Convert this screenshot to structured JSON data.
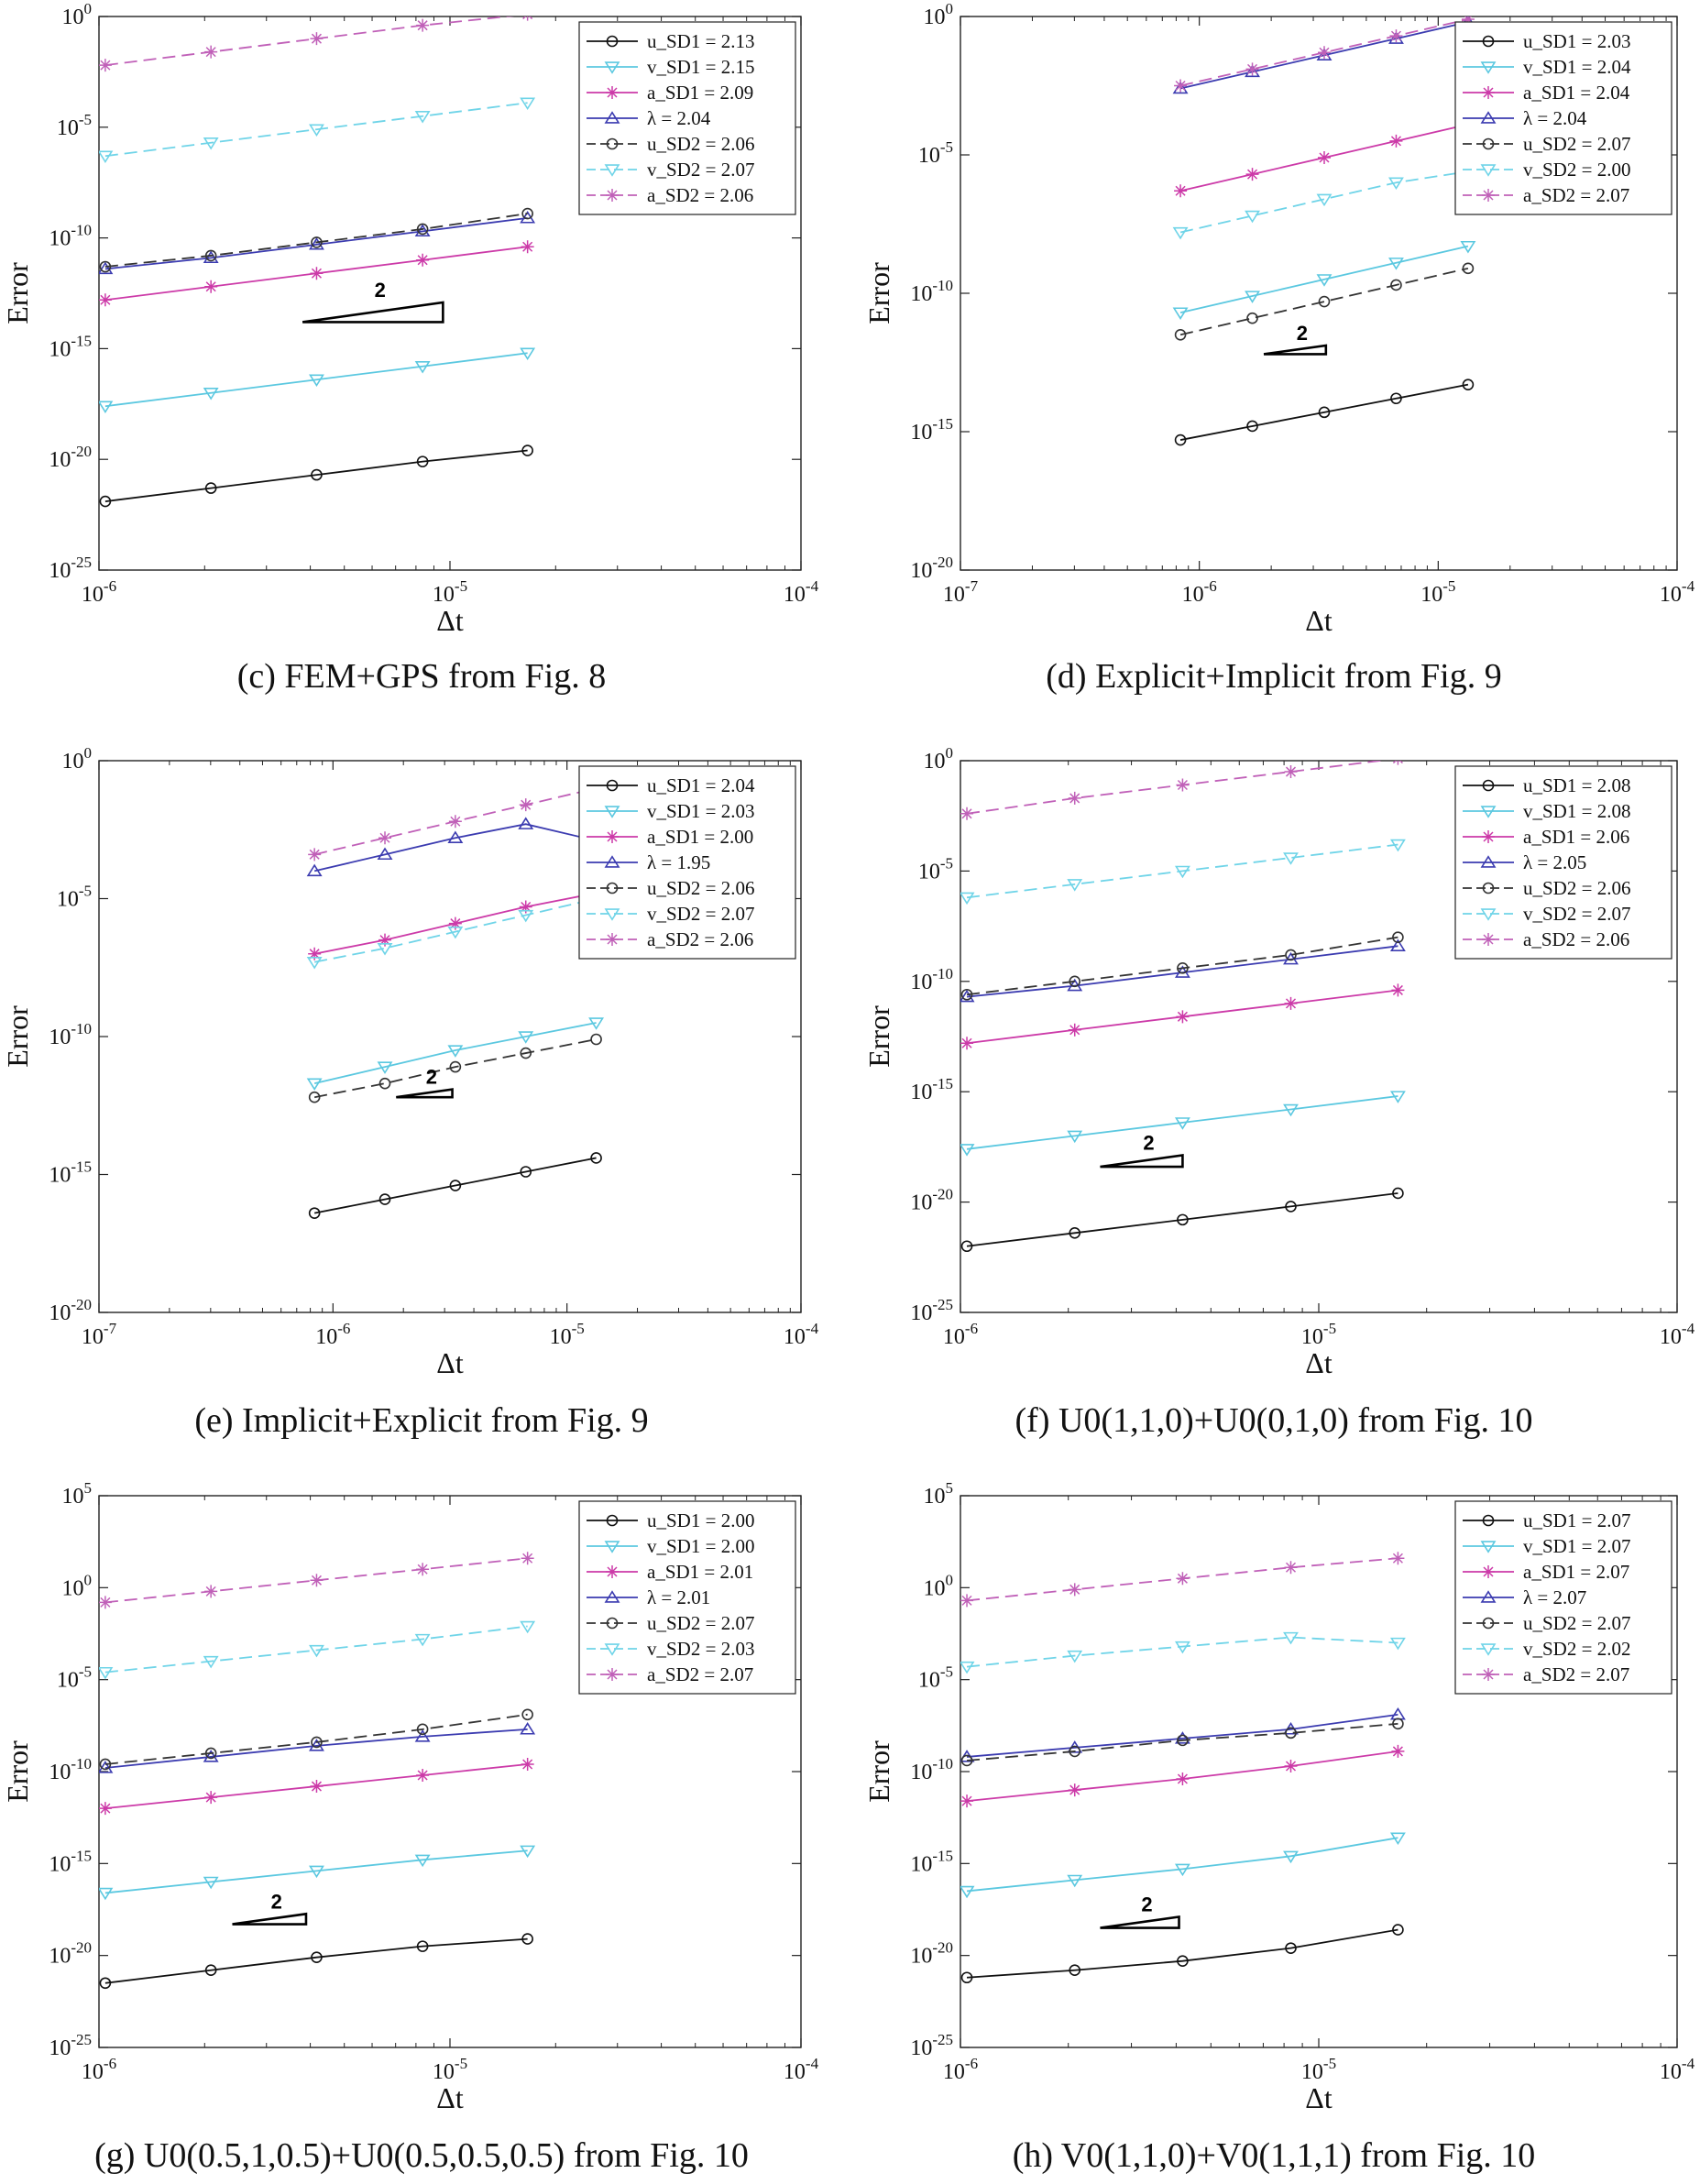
{
  "colors": {
    "u": "#111111",
    "v": "#5bc8e0",
    "a": "#cc3aa8",
    "lambda": "#3b3bb0",
    "u2": "#333333",
    "v2": "#6fd4e8",
    "a2": "#c060b8"
  },
  "chart_data": [
    {
      "type": "line",
      "caption": "(c) FEM+GPS from Fig. 8",
      "xlabel": "Δt",
      "ylabel": "Error",
      "xscale": "log",
      "yscale": "log",
      "xlim_exp": [
        -6,
        -4
      ],
      "ylim_exp": [
        -25,
        0
      ],
      "xtick_exps": [
        -6,
        -5,
        -4
      ],
      "ytick_exps": [
        -25,
        -20,
        -15,
        -10,
        -5,
        0
      ],
      "x_exps": [
        -5.982,
        -5.681,
        -5.38,
        -5.078,
        -4.779
      ],
      "triangle": {
        "label": "2",
        "x0": -5.42,
        "x1": -5.02,
        "y0": -13.8
      },
      "series": [
        {
          "name": "u_SD1 = 2.13",
          "key": "u",
          "style": "solid",
          "marker": "circle",
          "y_exps": [
            -21.9,
            -21.3,
            -20.7,
            -20.1,
            -19.6
          ]
        },
        {
          "name": "v_SD1 = 2.15",
          "key": "v",
          "style": "solid",
          "marker": "tridown",
          "y_exps": [
            -17.6,
            -17.0,
            -16.4,
            -15.8,
            -15.2
          ]
        },
        {
          "name": "a_SD1 = 2.09",
          "key": "a",
          "style": "solid",
          "marker": "star",
          "y_exps": [
            -12.8,
            -12.2,
            -11.6,
            -11.0,
            -10.4
          ]
        },
        {
          "name": "λ = 2.04",
          "key": "lambda",
          "style": "solid",
          "marker": "triup",
          "y_exps": [
            -11.4,
            -10.9,
            -10.3,
            -9.7,
            -9.1
          ]
        },
        {
          "name": "u_SD2 = 2.06",
          "key": "u2",
          "style": "dash",
          "marker": "circle",
          "y_exps": [
            -11.3,
            -10.8,
            -10.2,
            -9.6,
            -8.9
          ]
        },
        {
          "name": "v_SD2 = 2.07",
          "key": "v2",
          "style": "dash",
          "marker": "tridown",
          "y_exps": [
            -6.3,
            -5.7,
            -5.1,
            -4.5,
            -3.9
          ]
        },
        {
          "name": "a_SD2 = 2.06",
          "key": "a2",
          "style": "dash",
          "marker": "star",
          "y_exps": [
            -2.2,
            -1.6,
            -1.0,
            -0.4,
            0.1
          ]
        }
      ]
    },
    {
      "type": "line",
      "caption": "(d) Explicit+Implicit from Fig. 9",
      "xlabel": "Δt",
      "ylabel": "Error",
      "xscale": "log",
      "yscale": "log",
      "xlim_exp": [
        -7,
        -4
      ],
      "ylim_exp": [
        -20,
        0
      ],
      "xtick_exps": [
        -7,
        -6,
        -5,
        -4
      ],
      "ytick_exps": [
        -20,
        -15,
        -10,
        -5,
        0
      ],
      "x_exps": [
        -6.079,
        -5.778,
        -5.477,
        -5.176,
        -4.875
      ],
      "triangle": {
        "label": "2",
        "x0": -5.73,
        "x1": -5.47,
        "y0": -12.2
      },
      "series": [
        {
          "name": "u_SD1 = 2.03",
          "key": "u",
          "style": "solid",
          "marker": "circle",
          "y_exps": [
            -15.3,
            -14.8,
            -14.3,
            -13.8,
            -13.3
          ]
        },
        {
          "name": "v_SD1 = 2.04",
          "key": "v",
          "style": "solid",
          "marker": "tridown",
          "y_exps": [
            -10.7,
            -10.1,
            -9.5,
            -8.9,
            -8.3
          ]
        },
        {
          "name": "a_SD1 = 2.04",
          "key": "a",
          "style": "solid",
          "marker": "star",
          "y_exps": [
            -6.3,
            -5.7,
            -5.1,
            -4.5,
            -3.9
          ]
        },
        {
          "name": "λ = 2.04",
          "key": "lambda",
          "style": "solid",
          "marker": "triup",
          "y_exps": [
            -2.6,
            -2.0,
            -1.4,
            -0.8,
            -0.2
          ]
        },
        {
          "name": "u_SD2 = 2.07",
          "key": "u2",
          "style": "dash",
          "marker": "circle",
          "y_exps": [
            -11.5,
            -10.9,
            -10.3,
            -9.7,
            -9.1
          ]
        },
        {
          "name": "v_SD2 = 2.00",
          "key": "v2",
          "style": "dash",
          "marker": "tridown",
          "y_exps": [
            -7.8,
            -7.2,
            -6.6,
            -6.0,
            -5.6
          ]
        },
        {
          "name": "a_SD2 = 2.07",
          "key": "a2",
          "style": "dash",
          "marker": "star",
          "y_exps": [
            -2.5,
            -1.9,
            -1.3,
            -0.7,
            -0.1
          ]
        }
      ]
    },
    {
      "type": "line",
      "caption": "(e) Implicit+Explicit from Fig. 9",
      "xlabel": "Δt",
      "ylabel": "Error",
      "xscale": "log",
      "yscale": "log",
      "xlim_exp": [
        -7,
        -4
      ],
      "ylim_exp": [
        -20,
        0
      ],
      "xtick_exps": [
        -7,
        -6,
        -5,
        -4
      ],
      "ytick_exps": [
        -20,
        -15,
        -10,
        -5,
        0
      ],
      "x_exps": [
        -6.079,
        -5.778,
        -5.477,
        -5.176,
        -4.875
      ],
      "triangle": {
        "label": "2",
        "x0": -5.73,
        "x1": -5.49,
        "y0": -12.2
      },
      "series": [
        {
          "name": "u_SD1 = 2.04",
          "key": "u",
          "style": "solid",
          "marker": "circle",
          "y_exps": [
            -16.4,
            -15.9,
            -15.4,
            -14.9,
            -14.4
          ]
        },
        {
          "name": "v_SD1 = 2.03",
          "key": "v",
          "style": "solid",
          "marker": "tridown",
          "y_exps": [
            -11.7,
            -11.1,
            -10.5,
            -10.0,
            -9.5
          ]
        },
        {
          "name": "a_SD1 = 2.00",
          "key": "a",
          "style": "solid",
          "marker": "star",
          "y_exps": [
            -7.0,
            -6.5,
            -5.9,
            -5.3,
            -4.8
          ]
        },
        {
          "name": "λ = 1.95",
          "key": "lambda",
          "style": "solid",
          "marker": "triup",
          "y_exps": [
            -4.0,
            -3.4,
            -2.8,
            -2.3,
            -2.9
          ]
        },
        {
          "name": "u_SD2 = 2.06",
          "key": "u2",
          "style": "dash",
          "marker": "circle",
          "y_exps": [
            -12.2,
            -11.7,
            -11.1,
            -10.6,
            -10.1
          ]
        },
        {
          "name": "v_SD2 = 2.07",
          "key": "v2",
          "style": "dash",
          "marker": "tridown",
          "y_exps": [
            -7.3,
            -6.8,
            -6.2,
            -5.6,
            -5.0
          ]
        },
        {
          "name": "a_SD2 = 2.06",
          "key": "a2",
          "style": "dash",
          "marker": "star",
          "y_exps": [
            -3.4,
            -2.8,
            -2.2,
            -1.6,
            -1.0
          ]
        }
      ]
    },
    {
      "type": "line",
      "caption": "(f) U0(1,1,0)+U0(0,1,0) from Fig. 10",
      "xlabel": "Δt",
      "ylabel": "Error",
      "xscale": "log",
      "yscale": "log",
      "xlim_exp": [
        -6,
        -4
      ],
      "ylim_exp": [
        -25,
        0
      ],
      "xtick_exps": [
        -6,
        -5,
        -4
      ],
      "ytick_exps": [
        -25,
        -20,
        -15,
        -10,
        -5,
        0
      ],
      "x_exps": [
        -5.982,
        -5.681,
        -5.38,
        -5.078,
        -4.779
      ],
      "triangle": {
        "label": "2",
        "x0": -5.61,
        "x1": -5.38,
        "y0": -18.4
      },
      "series": [
        {
          "name": "u_SD1 = 2.08",
          "key": "u",
          "style": "solid",
          "marker": "circle",
          "y_exps": [
            -22.0,
            -21.4,
            -20.8,
            -20.2,
            -19.6
          ]
        },
        {
          "name": "v_SD1 = 2.08",
          "key": "v",
          "style": "solid",
          "marker": "tridown",
          "y_exps": [
            -17.6,
            -17.0,
            -16.4,
            -15.8,
            -15.2
          ]
        },
        {
          "name": "a_SD1 = 2.06",
          "key": "a",
          "style": "solid",
          "marker": "star",
          "y_exps": [
            -12.8,
            -12.2,
            -11.6,
            -11.0,
            -10.4
          ]
        },
        {
          "name": "λ = 2.05",
          "key": "lambda",
          "style": "solid",
          "marker": "triup",
          "y_exps": [
            -10.7,
            -10.2,
            -9.6,
            -9.0,
            -8.4
          ]
        },
        {
          "name": "u_SD2 = 2.06",
          "key": "u2",
          "style": "dash",
          "marker": "circle",
          "y_exps": [
            -10.6,
            -10.0,
            -9.4,
            -8.8,
            -8.0
          ]
        },
        {
          "name": "v_SD2 = 2.07",
          "key": "v2",
          "style": "dash",
          "marker": "tridown",
          "y_exps": [
            -6.2,
            -5.6,
            -5.0,
            -4.4,
            -3.8
          ]
        },
        {
          "name": "a_SD2 = 2.06",
          "key": "a2",
          "style": "dash",
          "marker": "star",
          "y_exps": [
            -2.4,
            -1.7,
            -1.1,
            -0.5,
            0.1
          ]
        }
      ]
    },
    {
      "type": "line",
      "caption": "(g) U0(0.5,1,0.5)+U0(0.5,0.5,0.5) from Fig. 10",
      "xlabel": "Δt",
      "ylabel": "Error",
      "xscale": "log",
      "yscale": "log",
      "xlim_exp": [
        -6,
        -4
      ],
      "ylim_exp": [
        -25,
        5
      ],
      "xtick_exps": [
        -6,
        -5,
        -4
      ],
      "ytick_exps": [
        -25,
        -20,
        -15,
        -10,
        -5,
        0,
        5
      ],
      "x_exps": [
        -5.982,
        -5.681,
        -5.38,
        -5.078,
        -4.779
      ],
      "triangle": {
        "label": "2",
        "x0": -5.62,
        "x1": -5.41,
        "y0": -18.3
      },
      "series": [
        {
          "name": "u_SD1 = 2.00",
          "key": "u",
          "style": "solid",
          "marker": "circle",
          "y_exps": [
            -21.5,
            -20.8,
            -20.1,
            -19.5,
            -19.1
          ]
        },
        {
          "name": "v_SD1 = 2.00",
          "key": "v",
          "style": "solid",
          "marker": "tridown",
          "y_exps": [
            -16.6,
            -16.0,
            -15.4,
            -14.8,
            -14.3
          ]
        },
        {
          "name": "a_SD1 = 2.01",
          "key": "a",
          "style": "solid",
          "marker": "star",
          "y_exps": [
            -12.0,
            -11.4,
            -10.8,
            -10.2,
            -9.6
          ]
        },
        {
          "name": "λ = 2.01",
          "key": "lambda",
          "style": "solid",
          "marker": "triup",
          "y_exps": [
            -9.8,
            -9.2,
            -8.6,
            -8.1,
            -7.7
          ]
        },
        {
          "name": "u_SD2 = 2.07",
          "key": "u2",
          "style": "dash",
          "marker": "circle",
          "y_exps": [
            -9.6,
            -9.0,
            -8.4,
            -7.7,
            -6.9
          ]
        },
        {
          "name": "v_SD2 = 2.03",
          "key": "v2",
          "style": "dash",
          "marker": "tridown",
          "y_exps": [
            -4.6,
            -4.0,
            -3.4,
            -2.8,
            -2.1
          ]
        },
        {
          "name": "a_SD2 = 2.07",
          "key": "a2",
          "style": "dash",
          "marker": "star",
          "y_exps": [
            -0.8,
            -0.2,
            0.4,
            1.0,
            1.6
          ]
        }
      ]
    },
    {
      "type": "line",
      "caption": "(h) V0(1,1,0)+V0(1,1,1) from Fig. 10",
      "xlabel": "Δt",
      "ylabel": "Error",
      "xscale": "log",
      "yscale": "log",
      "xlim_exp": [
        -6,
        -4
      ],
      "ylim_exp": [
        -25,
        5
      ],
      "xtick_exps": [
        -6,
        -5,
        -4
      ],
      "ytick_exps": [
        -25,
        -20,
        -15,
        -10,
        -5,
        0,
        5
      ],
      "x_exps": [
        -5.982,
        -5.681,
        -5.38,
        -5.078,
        -4.779
      ],
      "triangle": {
        "label": "2",
        "x0": -5.61,
        "x1": -5.39,
        "y0": -18.5
      },
      "series": [
        {
          "name": "u_SD1 = 2.07",
          "key": "u",
          "style": "solid",
          "marker": "circle",
          "y_exps": [
            -21.2,
            -20.8,
            -20.3,
            -19.6,
            -18.6
          ]
        },
        {
          "name": "v_SD1 = 2.07",
          "key": "v",
          "style": "solid",
          "marker": "tridown",
          "y_exps": [
            -16.5,
            -15.9,
            -15.3,
            -14.6,
            -13.6
          ]
        },
        {
          "name": "a_SD1 = 2.07",
          "key": "a",
          "style": "solid",
          "marker": "star",
          "y_exps": [
            -11.6,
            -11.0,
            -10.4,
            -9.7,
            -8.9
          ]
        },
        {
          "name": "λ = 2.07",
          "key": "lambda",
          "style": "solid",
          "marker": "triup",
          "y_exps": [
            -9.2,
            -8.7,
            -8.2,
            -7.7,
            -6.9
          ]
        },
        {
          "name": "u_SD2 = 2.07",
          "key": "u2",
          "style": "dash",
          "marker": "circle",
          "y_exps": [
            -9.4,
            -8.9,
            -8.3,
            -7.9,
            -7.4
          ]
        },
        {
          "name": "v_SD2 = 2.02",
          "key": "v2",
          "style": "dash",
          "marker": "tridown",
          "y_exps": [
            -4.3,
            -3.7,
            -3.2,
            -2.7,
            -3.0
          ]
        },
        {
          "name": "a_SD2 = 2.07",
          "key": "a2",
          "style": "dash",
          "marker": "star",
          "y_exps": [
            -0.7,
            -0.1,
            0.5,
            1.1,
            1.6
          ]
        }
      ]
    }
  ]
}
